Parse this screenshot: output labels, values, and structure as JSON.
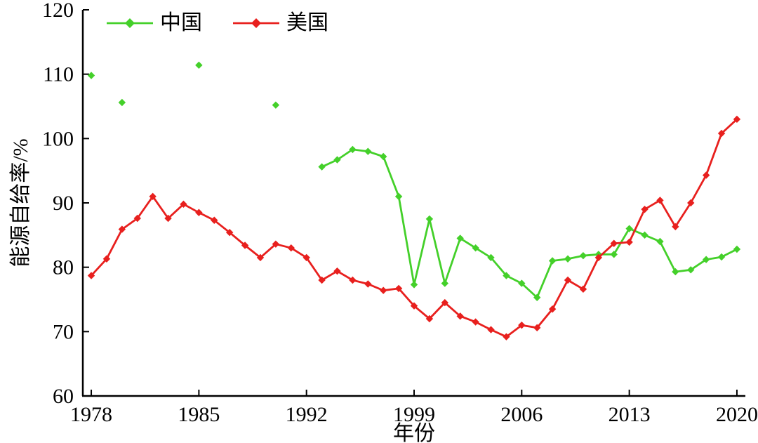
{
  "figure": {
    "background": "#ffffff",
    "axis_color": "#000000"
  },
  "chart_data": {
    "type": "line",
    "title": "",
    "xlabel": "年份",
    "ylabel": "能源自给率/%",
    "grid": false,
    "legend_position": "top-left-inside",
    "xlim": [
      1977.45,
      2020.55
    ],
    "ylim": [
      60,
      120
    ],
    "xticks": [
      1978,
      1985,
      1992,
      1999,
      2006,
      2013,
      2020
    ],
    "yticks": [
      60,
      70,
      80,
      90,
      100,
      110,
      120
    ],
    "x": [
      1978,
      1979,
      1980,
      1981,
      1982,
      1983,
      1984,
      1985,
      1986,
      1987,
      1988,
      1989,
      1990,
      1991,
      1992,
      1993,
      1994,
      1995,
      1996,
      1997,
      1998,
      1999,
      2000,
      2001,
      2002,
      2003,
      2004,
      2005,
      2006,
      2007,
      2008,
      2009,
      2010,
      2011,
      2012,
      2013,
      2014,
      2015,
      2016,
      2017,
      2018,
      2019,
      2020
    ],
    "series": [
      {
        "name": "中国",
        "color": "#44d02a",
        "marker": "diamond",
        "values": [
          109.8,
          null,
          105.6,
          null,
          null,
          null,
          null,
          111.4,
          null,
          null,
          null,
          null,
          105.2,
          null,
          null,
          95.6,
          96.7,
          98.3,
          98.0,
          97.2,
          91.0,
          77.3,
          87.5,
          77.5,
          84.5,
          83.0,
          81.5,
          78.7,
          77.5,
          75.3,
          81.0,
          81.3,
          81.8,
          82.0,
          82.0,
          86.0,
          85.0,
          84.0,
          79.3,
          79.6,
          81.2,
          81.6,
          82.8
        ]
      },
      {
        "name": "美国",
        "color": "#e8201e",
        "marker": "diamond",
        "values": [
          78.7,
          81.3,
          85.9,
          87.6,
          91.0,
          87.6,
          89.8,
          88.5,
          87.3,
          85.4,
          83.4,
          81.5,
          83.6,
          83.0,
          81.5,
          78.0,
          79.4,
          78.0,
          77.4,
          76.4,
          76.7,
          74.0,
          72.0,
          74.5,
          72.4,
          71.5,
          70.3,
          69.2,
          71.0,
          70.6,
          73.5,
          78.0,
          76.6,
          81.5,
          83.7,
          83.9,
          89.0,
          90.4,
          86.3,
          90.0,
          94.3,
          100.8,
          103.0
        ]
      }
    ]
  }
}
